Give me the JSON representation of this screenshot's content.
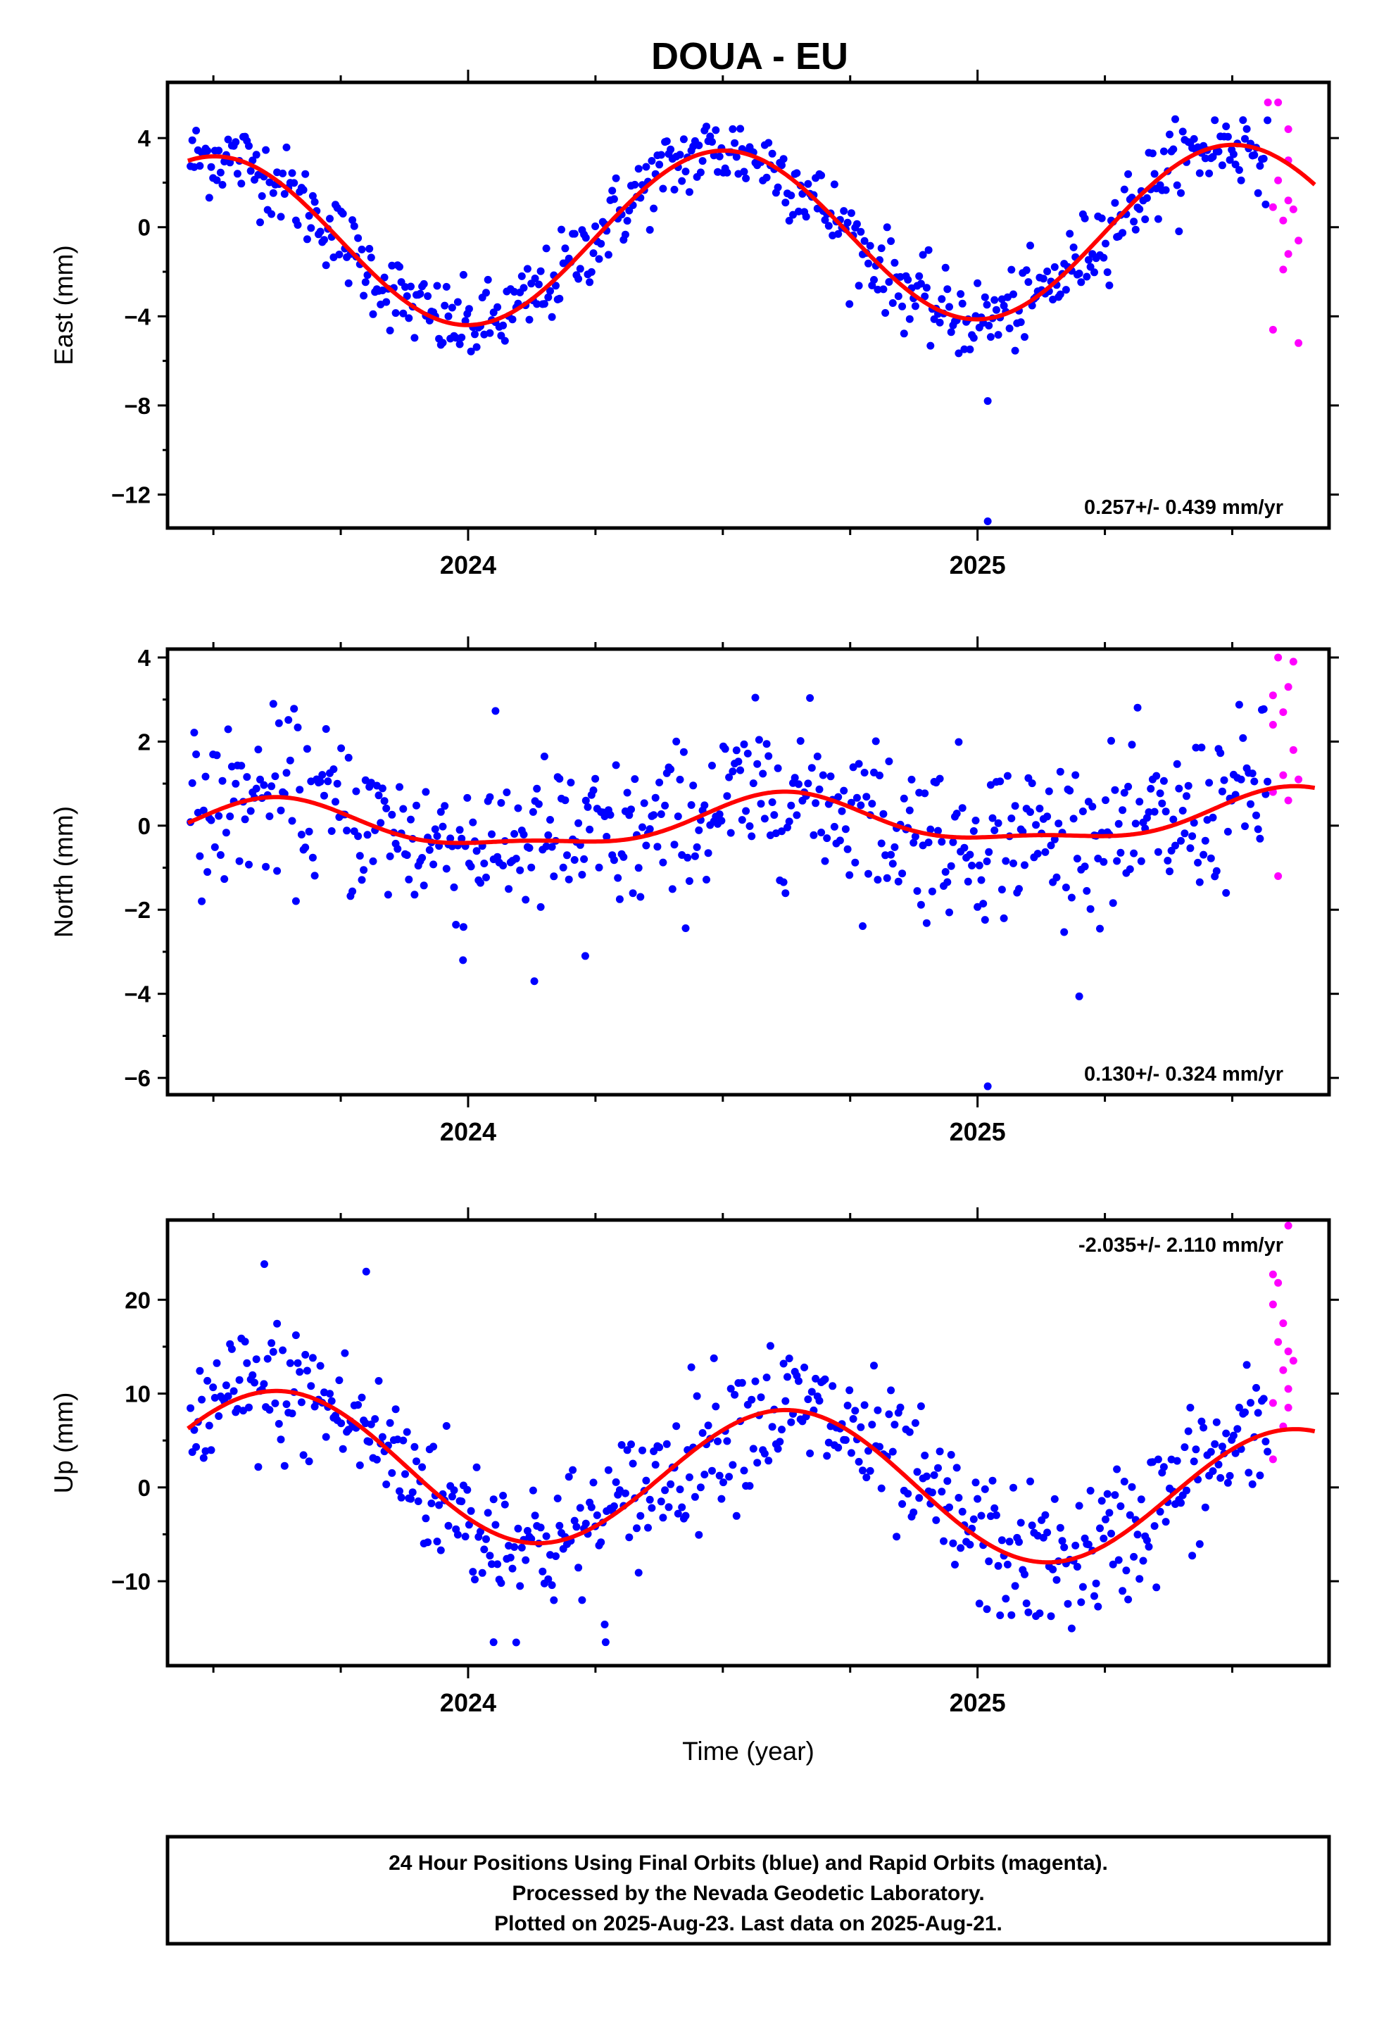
{
  "title": "DOUA - EU",
  "footer": {
    "line1": "24 Hour Positions Using Final Orbits (blue) and Rapid Orbits (magenta).",
    "line2": "Processed by the Nevada Geodetic Laboratory.",
    "line3": "Plotted on 2025-Aug-23. Last data on 2025-Aug-21."
  },
  "x_axis_title": "Time (year)",
  "colors": {
    "final": "#0000ff",
    "rapid": "#ff00ff",
    "model": "#ff0000"
  },
  "chart_data": [
    {
      "type": "scatter",
      "component": "east",
      "ylabel": "East (mm)",
      "xlim": [
        2023.41,
        2025.69
      ],
      "ylim": [
        -13.5,
        6.5
      ],
      "yticks": [
        -12,
        -8,
        -4,
        0,
        4
      ],
      "xticks": [
        2024,
        2025
      ],
      "rate_text": "0.257+/- 0.439 mm/yr",
      "rate_pos": "bottom-right",
      "model": {
        "mean": -0.4,
        "amp": 3.85,
        "peak": 2024.5,
        "trend": 0.257
      },
      "noise_sd": 0.9,
      "outliers": [
        [
          2025.02,
          -7.8
        ],
        [
          2025.02,
          -13.2
        ]
      ],
      "rapid": [
        [
          2025.57,
          5.6
        ],
        [
          2025.59,
          5.6
        ],
        [
          2025.61,
          4.4
        ],
        [
          2025.61,
          3.0
        ],
        [
          2025.59,
          2.1
        ],
        [
          2025.61,
          1.2
        ],
        [
          2025.58,
          0.9
        ],
        [
          2025.62,
          0.8
        ],
        [
          2025.6,
          0.3
        ],
        [
          2025.63,
          -0.6
        ],
        [
          2025.61,
          -1.2
        ],
        [
          2025.6,
          -1.9
        ],
        [
          2025.58,
          -4.6
        ],
        [
          2025.63,
          -5.2
        ]
      ]
    },
    {
      "type": "scatter",
      "component": "north",
      "ylabel": "North (mm)",
      "xlim": [
        2023.41,
        2025.69
      ],
      "ylim": [
        -6.4,
        4.2
      ],
      "yticks": [
        -6,
        -4,
        -2,
        0,
        2,
        4
      ],
      "xticks": [
        2024,
        2025
      ],
      "rate_text": "0.130+/- 0.324 mm/yr",
      "rate_pos": "bottom-right",
      "model": {
        "mean": 0.05,
        "amp": 0.55,
        "peak": 2024.62,
        "trend": 0.13,
        "amp2": 0.2
      },
      "noise_sd": 0.95,
      "outliers": [
        [
          2025.02,
          -6.2
        ],
        [
          2024.13,
          -3.7
        ],
        [
          2023.99,
          -3.2
        ],
        [
          2024.23,
          -3.1
        ]
      ],
      "rapid": [
        [
          2025.59,
          4.0
        ],
        [
          2025.62,
          3.9
        ],
        [
          2025.61,
          3.3
        ],
        [
          2025.58,
          3.1
        ],
        [
          2025.6,
          2.7
        ],
        [
          2025.58,
          2.4
        ],
        [
          2025.62,
          1.8
        ],
        [
          2025.6,
          1.2
        ],
        [
          2025.63,
          1.1
        ],
        [
          2025.58,
          0.8
        ],
        [
          2025.61,
          0.6
        ],
        [
          2025.59,
          -1.2
        ]
      ]
    },
    {
      "type": "scatter",
      "component": "up",
      "ylabel": "Up (mm)",
      "xlim": [
        2023.41,
        2025.69
      ],
      "ylim": [
        -19,
        28.5
      ],
      "yticks": [
        -10,
        0,
        10,
        20
      ],
      "xticks": [
        2024,
        2025
      ],
      "rate_text": "-2.035+/- 2.110 mm/yr",
      "rate_pos": "top-right",
      "model": {
        "mean": 0.8,
        "amp": 7.6,
        "peak": 2024.63,
        "trend": -2.035
      },
      "noise_sd": 3.8,
      "outliers": [
        [
          2023.6,
          23.8
        ],
        [
          2023.8,
          23.0
        ],
        [
          2024.05,
          -16.5
        ],
        [
          2024.27,
          -16.5
        ]
      ],
      "rapid": [
        [
          2025.61,
          27.9
        ],
        [
          2025.58,
          22.7
        ],
        [
          2025.59,
          21.8
        ],
        [
          2025.58,
          19.5
        ],
        [
          2025.6,
          17.5
        ],
        [
          2025.59,
          15.5
        ],
        [
          2025.61,
          14.5
        ],
        [
          2025.62,
          13.5
        ],
        [
          2025.6,
          12.5
        ],
        [
          2025.61,
          10.5
        ],
        [
          2025.58,
          9.0
        ],
        [
          2025.61,
          8.5
        ],
        [
          2025.6,
          6.5
        ],
        [
          2025.58,
          3.0
        ]
      ]
    }
  ]
}
